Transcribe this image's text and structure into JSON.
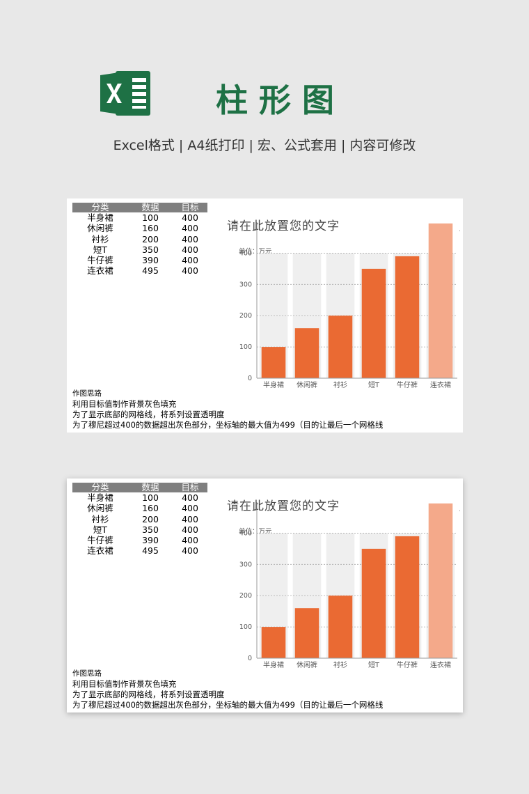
{
  "header": {
    "title": "柱形图",
    "subtitle": "Excel格式 |  A4纸打印 | 宏、公式套用 | 内容可修改",
    "logo_color": "#1e7145"
  },
  "sheets": [
    {
      "table": {
        "headers": [
          "分类",
          "数据",
          "目标"
        ],
        "rows": [
          [
            "半身裙",
            "100",
            "400"
          ],
          [
            "休闲裤",
            "160",
            "400"
          ],
          [
            "衬衫",
            "200",
            "400"
          ],
          [
            "短T",
            "350",
            "400"
          ],
          [
            "牛仔裤",
            "390",
            "400"
          ],
          [
            "连衣裙",
            "495",
            "400"
          ]
        ]
      },
      "notes": {
        "heading": "作图思路",
        "lines": [
          "利用目标值制作背景灰色填充",
          "为了显示底部的网格线，将系列设置透明度",
          "为了穆尼超过400的数据超出灰色部分，坐标轴的最大值为499（目的让最后一个网格线"
        ]
      }
    },
    {
      "table": {
        "headers": [
          "分类",
          "数据",
          "目标"
        ],
        "rows": [
          [
            "半身裙",
            "100",
            "400"
          ],
          [
            "休闲裤",
            "160",
            "400"
          ],
          [
            "衬衫",
            "200",
            "400"
          ],
          [
            "短T",
            "350",
            "400"
          ],
          [
            "牛仔裤",
            "390",
            "400"
          ],
          [
            "连衣裙",
            "495",
            "400"
          ]
        ]
      },
      "notes": {
        "heading": "作图思路",
        "lines": [
          "利用目标值制作背景灰色填充",
          "为了显示底部的网格线，将系列设置透明度",
          "为了穆尼超过400的数据超出灰色部分，坐标轴的最大值为499（目的让最后一个网格线"
        ]
      }
    }
  ],
  "chart_data": [
    {
      "type": "bar",
      "title": "请在此放置您的文字",
      "unit_label": "单位：万元",
      "categories": [
        "半身裙",
        "休闲裤",
        "衬衫",
        "短T",
        "牛仔裤",
        "连衣裙"
      ],
      "series": [
        {
          "name": "数据",
          "values": [
            100,
            160,
            200,
            350,
            390,
            495
          ]
        },
        {
          "name": "目标",
          "values": [
            400,
            400,
            400,
            400,
            400,
            400
          ]
        }
      ],
      "yticks": [
        "0",
        "100",
        "200",
        "300",
        "400"
      ],
      "ylim": [
        0,
        499
      ],
      "grid": true,
      "colors": {
        "bar": "#ea6a33",
        "bar_highlight": "#f4a98a",
        "target_bg": "#efefef",
        "axis": "#999999"
      }
    },
    {
      "type": "bar",
      "title": "请在此放置您的文字",
      "unit_label": "单位：万元",
      "categories": [
        "半身裙",
        "休闲裤",
        "衬衫",
        "短T",
        "牛仔裤",
        "连衣裙"
      ],
      "series": [
        {
          "name": "数据",
          "values": [
            100,
            160,
            200,
            350,
            390,
            495
          ]
        },
        {
          "name": "目标",
          "values": [
            400,
            400,
            400,
            400,
            400,
            400
          ]
        }
      ],
      "yticks": [
        "0",
        "100",
        "200",
        "300",
        "400"
      ],
      "ylim": [
        0,
        499
      ],
      "grid": true,
      "colors": {
        "bar": "#ea6a33",
        "bar_highlight": "#f4a98a",
        "target_bg": "#efefef",
        "axis": "#999999"
      }
    }
  ]
}
